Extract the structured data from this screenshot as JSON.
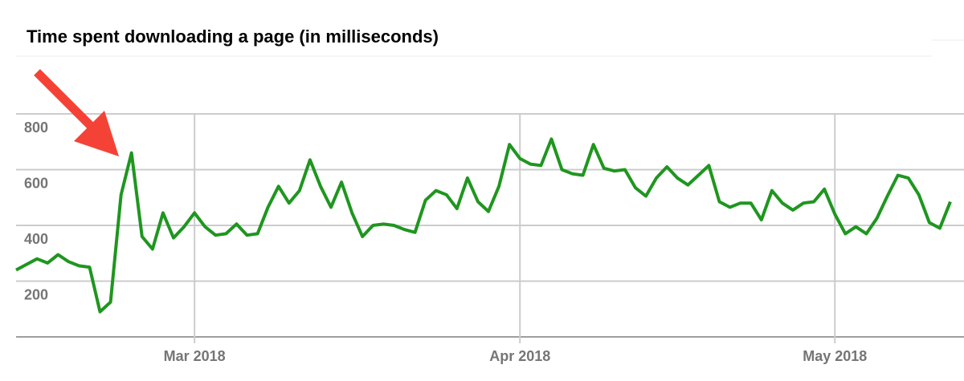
{
  "chart_data": {
    "type": "line",
    "title": "Time spent downloading a page (in milliseconds)",
    "values": [
      240,
      260,
      280,
      265,
      295,
      270,
      255,
      250,
      90,
      125,
      510,
      660,
      360,
      315,
      445,
      355,
      395,
      445,
      395,
      365,
      370,
      405,
      365,
      370,
      465,
      540,
      480,
      525,
      635,
      540,
      465,
      555,
      445,
      360,
      400,
      405,
      400,
      385,
      375,
      490,
      525,
      510,
      460,
      570,
      485,
      450,
      540,
      690,
      640,
      620,
      615,
      710,
      600,
      585,
      580,
      690,
      605,
      595,
      600,
      535,
      505,
      570,
      610,
      570,
      545,
      580,
      615,
      485,
      465,
      480,
      480,
      420,
      525,
      480,
      455,
      480,
      485,
      530,
      440,
      370,
      395,
      370,
      425,
      505,
      580,
      570,
      510,
      410,
      390,
      485
    ],
    "color": "#1f961f",
    "xlim": [
      0,
      89
    ],
    "xticks": [
      {
        "value": 17,
        "label": "Mar 2018"
      },
      {
        "value": 48,
        "label": "Apr 2018"
      },
      {
        "value": 78,
        "label": "May 2018"
      }
    ],
    "ylim": [
      0,
      1000
    ],
    "yticks": [
      200,
      400,
      600,
      800
    ],
    "grid": true
  }
}
